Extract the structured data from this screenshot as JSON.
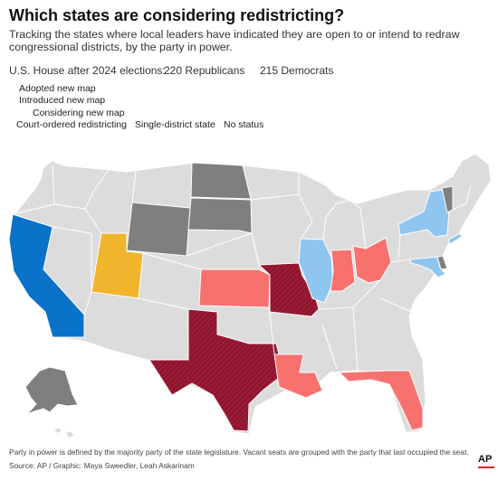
{
  "header": {
    "title": "Which states are considering redistricting?",
    "subtitle": "Tracking the states where local leaders have indicated they are open to or intend to redraw congressional districts, by the party in power."
  },
  "house": {
    "label": "U.S. House after 2024 elections:",
    "republicans": "220 Republicans",
    "democrats": "215 Democrats"
  },
  "legend": {
    "adopted": "Adopted new map",
    "introduced": "Introduced new map",
    "considering": "Considering new map",
    "court": "Court-ordered redistricting",
    "single": "Single-district state",
    "none": "No status"
  },
  "colors": {
    "dem_adopted": "#0a72c9",
    "dem_considering": "#8ec6ef",
    "rep_adopted": "#9c1a35",
    "rep_considering": "#f7726e",
    "court": "#f1b52d",
    "single": "#7f7f7f",
    "none": "#dcdcdc",
    "border": "#ffffff"
  },
  "map": {
    "states": [
      {
        "id": "CA",
        "party": "democrat",
        "status": "adopted"
      },
      {
        "id": "UT",
        "party": "none",
        "status": "court-ordered"
      },
      {
        "id": "TX",
        "party": "republican",
        "status": "adopted"
      },
      {
        "id": "MO",
        "party": "republican",
        "status": "adopted"
      },
      {
        "id": "KS",
        "party": "republican",
        "status": "considering"
      },
      {
        "id": "IN",
        "party": "republican",
        "status": "considering"
      },
      {
        "id": "OH",
        "party": "republican",
        "status": "considering"
      },
      {
        "id": "LA",
        "party": "republican",
        "status": "considering"
      },
      {
        "id": "FL",
        "party": "republican",
        "status": "considering"
      },
      {
        "id": "IL",
        "party": "democrat",
        "status": "considering"
      },
      {
        "id": "NY",
        "party": "democrat",
        "status": "considering"
      },
      {
        "id": "MD",
        "party": "democrat",
        "status": "considering"
      },
      {
        "id": "WY",
        "party": "none",
        "status": "single-district"
      },
      {
        "id": "ND",
        "party": "none",
        "status": "single-district"
      },
      {
        "id": "SD",
        "party": "none",
        "status": "single-district"
      },
      {
        "id": "AK",
        "party": "none",
        "status": "single-district"
      },
      {
        "id": "VT",
        "party": "none",
        "status": "single-district"
      },
      {
        "id": "DE",
        "party": "none",
        "status": "single-district"
      }
    ]
  },
  "footer": {
    "note": "Party in power is defined by the majority party of the state legislature. Vacant seats are grouped with the party that last occupied the seat.",
    "source": "Source: AP / Graphic: Maya Sweedler, Leah Askarinam",
    "logo": "AP"
  }
}
